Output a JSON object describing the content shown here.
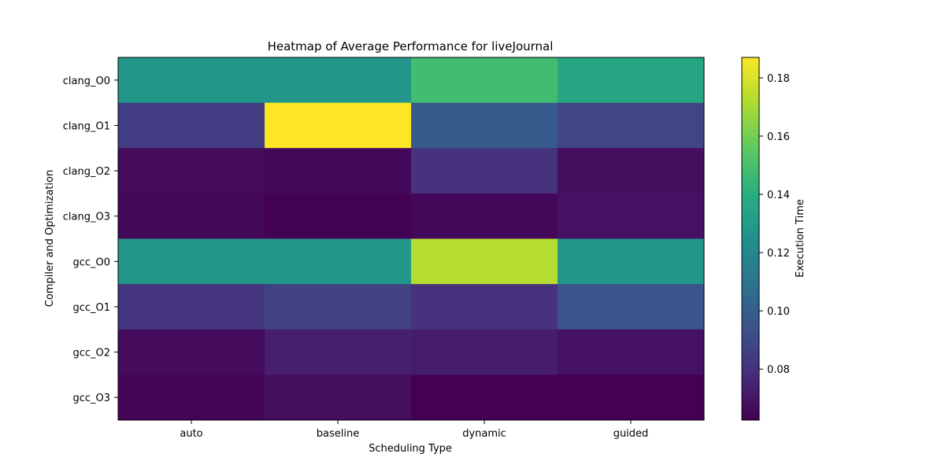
{
  "chart_data": {
    "type": "heatmap",
    "title": "Heatmap of Average Performance for liveJournal",
    "xlabel": "Scheduling Type",
    "ylabel": "Compiler and Optimization",
    "x_categories": [
      "auto",
      "baseline",
      "dynamic",
      "guided"
    ],
    "y_categories": [
      "clang_O0",
      "clang_O1",
      "clang_O2",
      "clang_O3",
      "gcc_O0",
      "gcc_O1",
      "gcc_O2",
      "gcc_O3"
    ],
    "values": [
      [
        0.128,
        0.128,
        0.148,
        0.136
      ],
      [
        0.085,
        0.187,
        0.098,
        0.088
      ],
      [
        0.066,
        0.065,
        0.08,
        0.067
      ],
      [
        0.065,
        0.063,
        0.065,
        0.068
      ],
      [
        0.128,
        0.128,
        0.173,
        0.128
      ],
      [
        0.081,
        0.087,
        0.08,
        0.095
      ],
      [
        0.066,
        0.073,
        0.072,
        0.068
      ],
      [
        0.064,
        0.067,
        0.062,
        0.062
      ]
    ],
    "colormap": "viridis",
    "colorbar": {
      "label": "Execution Time",
      "range": [
        0.0625,
        0.187
      ],
      "ticks": [
        "0.08",
        "0.10",
        "0.12",
        "0.14",
        "0.16",
        "0.18"
      ]
    }
  }
}
